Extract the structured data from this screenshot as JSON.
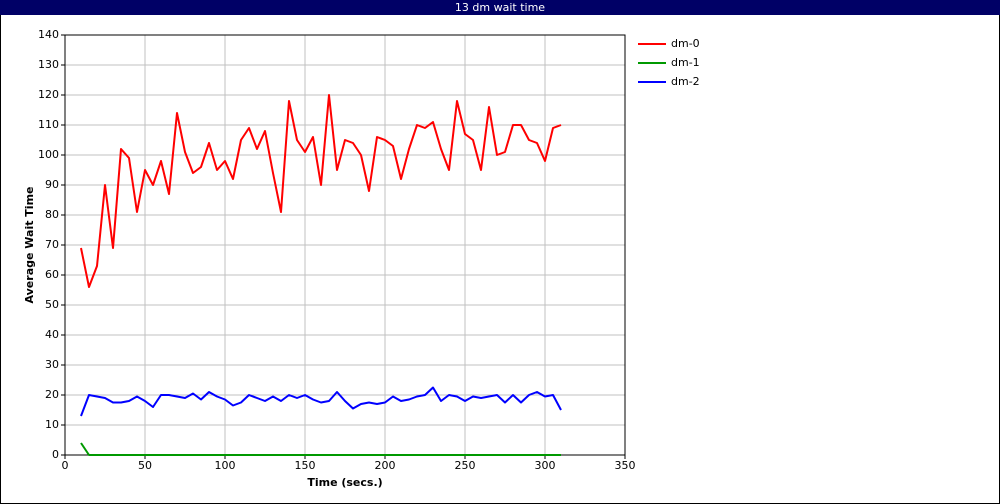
{
  "chart_data": {
    "type": "line",
    "window_title": "13 dm wait time",
    "x_label": "Time (secs.)",
    "y_label": "Average Wait Time",
    "x": [
      10,
      15,
      20,
      25,
      30,
      35,
      40,
      45,
      50,
      55,
      60,
      65,
      70,
      75,
      80,
      85,
      90,
      95,
      100,
      105,
      110,
      115,
      120,
      125,
      130,
      135,
      140,
      145,
      150,
      155,
      160,
      165,
      170,
      175,
      180,
      185,
      190,
      195,
      200,
      205,
      210,
      215,
      220,
      225,
      230,
      235,
      240,
      245,
      250,
      255,
      260,
      265,
      270,
      275,
      280,
      285,
      290,
      295,
      300,
      305,
      310
    ],
    "series": [
      {
        "name": "dm-0",
        "color": "#ff0000",
        "values": [
          69,
          56,
          63,
          90,
          69,
          102,
          99,
          81,
          95,
          90,
          98,
          87,
          114,
          101,
          94,
          96,
          104,
          95,
          98,
          92,
          105,
          109,
          102,
          108,
          94,
          81,
          118,
          105,
          101,
          106,
          90,
          120,
          95,
          105,
          104,
          100,
          88,
          106,
          105,
          103,
          92,
          102,
          110,
          109,
          111,
          102,
          95,
          118,
          107,
          105,
          95,
          116,
          100,
          101,
          110,
          110,
          105,
          104,
          98,
          109,
          110
        ]
      },
      {
        "name": "dm-1",
        "color": "#009900",
        "values": [
          4,
          0,
          0,
          0,
          0,
          0,
          0,
          0,
          0,
          0,
          0,
          0,
          0,
          0,
          0,
          0,
          0,
          0,
          0,
          0,
          0,
          0,
          0,
          0,
          0,
          0,
          0,
          0,
          0,
          0,
          0,
          0,
          0,
          0,
          0,
          0,
          0,
          0,
          0,
          0,
          0,
          0,
          0,
          0,
          0,
          0,
          0,
          0,
          0,
          0,
          0,
          0,
          0,
          0,
          0,
          0,
          0,
          0,
          0,
          0,
          0
        ]
      },
      {
        "name": "dm-2",
        "color": "#0000ff",
        "values": [
          13,
          20,
          19.5,
          19,
          17.5,
          17.5,
          18,
          19.5,
          18,
          16,
          20,
          20,
          19.5,
          19,
          20.5,
          18.5,
          21,
          19.5,
          18.5,
          16.5,
          17.5,
          20,
          19,
          18,
          19.5,
          18,
          20,
          19,
          20,
          18.5,
          17.5,
          18,
          21,
          18,
          15.5,
          17,
          17.5,
          17,
          17.5,
          19.5,
          18,
          18.5,
          19.5,
          20,
          22.5,
          18,
          20,
          19.5,
          18,
          19.5,
          19,
          19.5,
          20,
          17.5,
          20,
          17.5,
          20,
          21,
          19.5,
          20,
          15
        ]
      }
    ],
    "xlim": [
      0,
      350
    ],
    "xticks": [
      0,
      50,
      100,
      150,
      200,
      250,
      300,
      350
    ],
    "ylim": [
      0,
      140
    ],
    "yticks": [
      0,
      10,
      20,
      30,
      40,
      50,
      60,
      70,
      80,
      90,
      100,
      110,
      120,
      130,
      140
    ],
    "grid": true,
    "legend": "top-right"
  }
}
